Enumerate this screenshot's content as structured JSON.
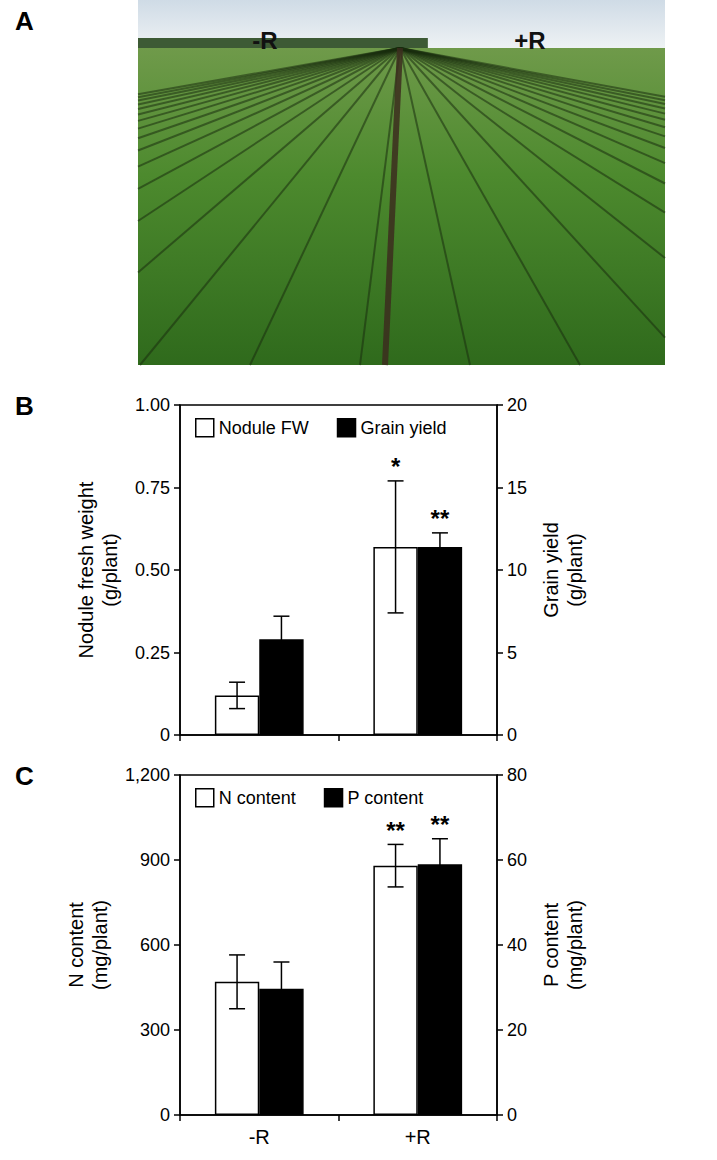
{
  "photo": {
    "panel_label": "A",
    "labels": [
      "-R",
      "+R"
    ]
  },
  "chart_data": [
    {
      "type": "bar",
      "panel_label": "B",
      "categories": [
        null,
        null
      ],
      "ylabel": "Nodule fresh weight (g/plant)",
      "y2label": "Grain yield (g/plant)",
      "ylim": [
        0,
        1
      ],
      "yticks": [
        0,
        0.25,
        {
          "value": 0.5,
          "label": "0.50"
        },
        0.75,
        {
          "value": 1,
          "label": "1.00"
        }
      ],
      "y2lim": [
        0,
        20
      ],
      "y2ticks": [
        0,
        5,
        10,
        15,
        20
      ],
      "grid": false,
      "legend": "upper left",
      "series": [
        {
          "name": "Nodule FW",
          "color": "#ffffff",
          "values": [
            0.12,
            0.57
          ],
          "error": [
            0.04,
            0.2
          ],
          "annotations": [
            null,
            "*"
          ]
        },
        {
          "name": "Grain yield",
          "color": "#000000",
          "axis": "y2",
          "values": [
            5.8,
            11.4
          ],
          "error": [
            1.4,
            0.85
          ],
          "annotations": [
            null,
            "**"
          ]
        }
      ]
    },
    {
      "type": "bar",
      "panel_label": "C",
      "categories": [
        "-R",
        "+R"
      ],
      "ylabel": "N content (mg/plant)",
      "y2label": "P content (mg/plant)",
      "ylim": [
        0,
        1200
      ],
      "yticks": [
        0,
        300,
        600,
        900,
        {
          "value": 1200,
          "label": "1,200"
        }
      ],
      "y2lim": [
        0,
        80
      ],
      "y2ticks": [
        0,
        20,
        40,
        60,
        80
      ],
      "grid": false,
      "legend": "upper left",
      "series": [
        {
          "name": "N content",
          "color": "#ffffff",
          "values": [
            470,
            880
          ],
          "error": [
            95,
            75
          ],
          "annotations": [
            null,
            "**"
          ]
        },
        {
          "name": "P content",
          "color": "#000000",
          "axis": "y2",
          "values": [
            29.7,
            59
          ],
          "error": [
            6.3,
            6
          ],
          "annotations": [
            null,
            "**"
          ]
        }
      ]
    }
  ]
}
